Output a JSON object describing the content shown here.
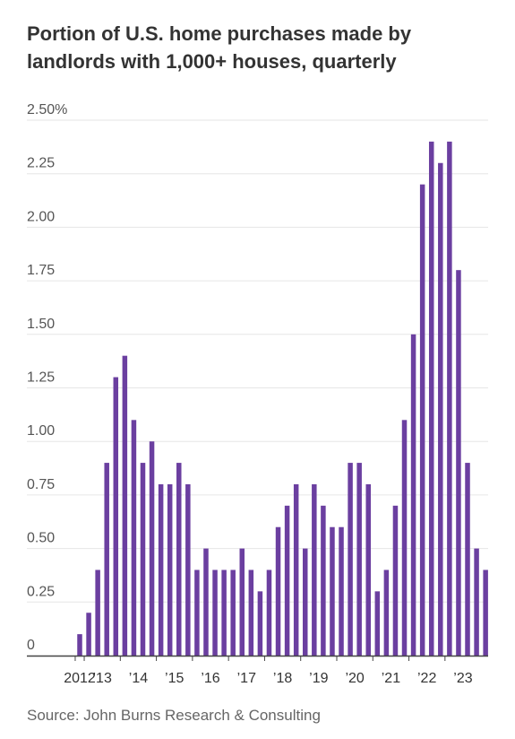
{
  "chart_data": {
    "type": "bar",
    "title": [
      "Portion of U.S. home purchases made by",
      "landlords with 1,000+ houses, quarterly"
    ],
    "source": "Source: John Burns Research & Consulting",
    "ylim": [
      0,
      2.5
    ],
    "yticks": [
      {
        "value": 0,
        "label": "0"
      },
      {
        "value": 0.25,
        "label": "0.25"
      },
      {
        "value": 0.5,
        "label": "0.50"
      },
      {
        "value": 0.75,
        "label": "0.75"
      },
      {
        "value": 1.0,
        "label": "1.00"
      },
      {
        "value": 1.25,
        "label": "1.25"
      },
      {
        "value": 1.5,
        "label": "1.50"
      },
      {
        "value": 1.75,
        "label": "1.75"
      },
      {
        "value": 2.0,
        "label": "2.00"
      },
      {
        "value": 2.25,
        "label": "2.25"
      },
      {
        "value": 2.5,
        "label": "2.50%"
      }
    ],
    "xticks": [
      "2012",
      "’13",
      "’14",
      "’15",
      "’16",
      "’17",
      "’18",
      "’19",
      "’20",
      "’21",
      "’22",
      "’23"
    ],
    "grid": true,
    "bar_color": "#6b3fa0",
    "grid_color": "#e6e6e6",
    "values": [
      0.1,
      0.2,
      0.4,
      0.9,
      1.3,
      1.4,
      1.1,
      0.9,
      1.0,
      0.8,
      0.8,
      0.9,
      0.8,
      0.4,
      0.5,
      0.4,
      0.4,
      0.4,
      0.5,
      0.4,
      0.3,
      0.4,
      0.6,
      0.7,
      0.8,
      0.5,
      0.8,
      0.7,
      0.6,
      0.6,
      0.9,
      0.9,
      0.8,
      0.3,
      0.4,
      0.7,
      1.1,
      1.5,
      2.2,
      2.4,
      2.3,
      2.4,
      1.8,
      0.9,
      0.5,
      0.4
    ]
  }
}
